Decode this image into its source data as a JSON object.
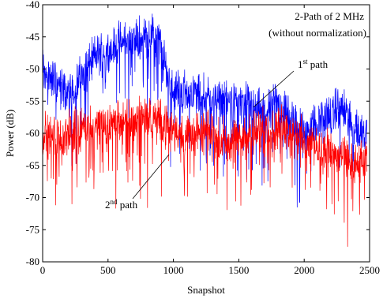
{
  "chart_data": {
    "type": "line",
    "title": "",
    "xlabel": "Snapshot",
    "ylabel": "Power (dB)",
    "xlim": [
      0,
      2500
    ],
    "ylim": [
      -80,
      -40
    ],
    "xticks": [
      0,
      500,
      1000,
      1500,
      2000,
      2500
    ],
    "yticks": [
      -80,
      -75,
      -70,
      -65,
      -60,
      -55,
      -50,
      -45,
      -40
    ],
    "grid": false,
    "annotations": {
      "header_line1": "2-Path of 2 MHz",
      "header_line2": "(without normalization)",
      "first_path": {
        "prefix": "1",
        "sup": "st",
        "suffix": " path"
      },
      "second_path": {
        "prefix": "2",
        "sup": "nd",
        "suffix": " path"
      }
    },
    "series": [
      {
        "color": "#0000ff",
        "x": [
          0,
          100,
          200,
          300,
          400,
          500,
          600,
          700,
          800,
          850,
          900,
          950,
          1000,
          1100,
          1200,
          1300,
          1400,
          1500,
          1600,
          1700,
          1800,
          1850,
          1900,
          2000,
          2100,
          2200,
          2300,
          2400,
          2480
        ],
        "values": [
          -50,
          -52,
          -54,
          -51,
          -48,
          -47,
          -46,
          -45.5,
          -45,
          -44.5,
          -46,
          -51,
          -53,
          -53.5,
          -54,
          -54.5,
          -55,
          -55,
          -56,
          -56.5,
          -55.5,
          -56,
          -58,
          -60,
          -58,
          -57,
          -56,
          -60,
          -59
        ]
      },
      {
        "color": "#ff0000",
        "x": [
          0,
          100,
          200,
          300,
          400,
          500,
          600,
          700,
          800,
          850,
          900,
          950,
          1000,
          1100,
          1200,
          1300,
          1400,
          1500,
          1600,
          1700,
          1800,
          1850,
          1900,
          2000,
          2100,
          2200,
          2300,
          2400,
          2480
        ],
        "values": [
          -60,
          -61,
          -60,
          -59,
          -59,
          -58.5,
          -58,
          -58,
          -57.5,
          -57.5,
          -58,
          -59,
          -59.5,
          -60,
          -60,
          -60,
          -61,
          -60.5,
          -60,
          -59.5,
          -59,
          -58.5,
          -60,
          -61,
          -62,
          -63,
          -64,
          -65,
          -64
        ]
      }
    ]
  }
}
